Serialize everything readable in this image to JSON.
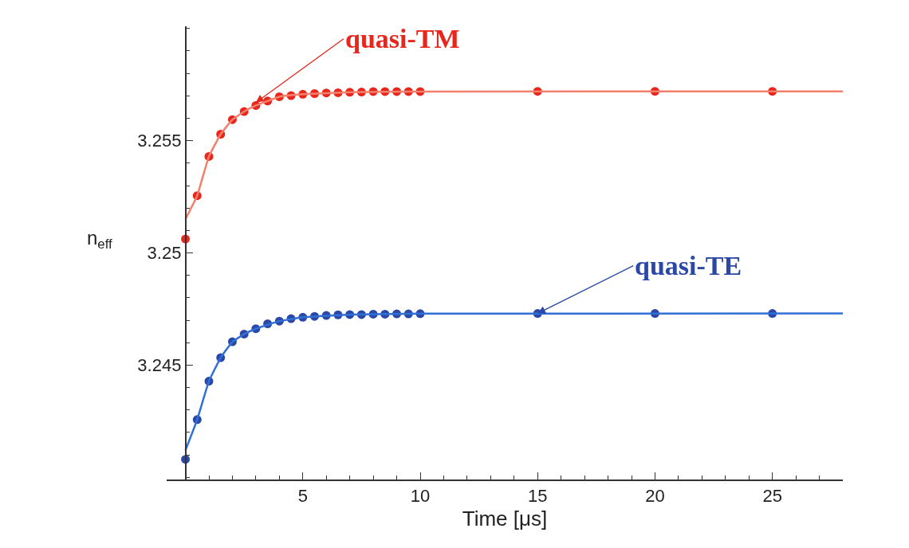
{
  "chart_data": {
    "type": "scatter",
    "xlabel": "Time [μs]",
    "ylabel": "n$_{eff}$",
    "xlim": [
      -0.8,
      28
    ],
    "ylim": [
      3.2399,
      3.2601
    ],
    "xticks": [
      5,
      10,
      15,
      20,
      25
    ],
    "yticks": [
      {
        "value": 3.245,
        "label": "3.245"
      },
      {
        "value": 3.25,
        "label": "3.25"
      },
      {
        "value": 3.255,
        "label": "3.255"
      }
    ],
    "marker": "circle",
    "series": [
      {
        "color": "#e8261c",
        "x": [
          0,
          0.5,
          1,
          1.5,
          2,
          2.5,
          3,
          3.5,
          4,
          4.5,
          5,
          5.5,
          6,
          6.5,
          7,
          7.5,
          8,
          8.5,
          9,
          9.5,
          10,
          15,
          20,
          25
        ],
        "values": [
          3.25062,
          3.25255,
          3.2543,
          3.25529,
          3.25594,
          3.2563,
          3.25657,
          3.25677,
          3.25696,
          3.25701,
          3.25707,
          3.2571,
          3.25713,
          3.25714,
          3.25716,
          3.25717,
          3.25719,
          3.25719,
          3.25719,
          3.25719,
          3.25719,
          3.2572,
          3.2572,
          3.2572
        ]
      },
      {
        "type": "line",
        "color": "#f2806c",
        "marker": "none",
        "x": [
          0,
          0.5,
          1,
          1.5,
          2,
          2.5,
          3,
          4,
          5,
          7,
          10,
          28
        ],
        "values": [
          3.2515,
          3.25255,
          3.2543,
          3.25529,
          3.25594,
          3.2563,
          3.25657,
          3.25696,
          3.25707,
          3.25716,
          3.25719,
          3.2572
        ]
      },
      {
        "color": "#2c48a6",
        "x": [
          0,
          0.5,
          1,
          1.5,
          2,
          2.5,
          3,
          3.5,
          4,
          4.5,
          5,
          5.5,
          6,
          6.5,
          7,
          7.5,
          8,
          8.5,
          9,
          9.5,
          10,
          15,
          20,
          25
        ],
        "values": [
          3.2408,
          3.24257,
          3.24428,
          3.24533,
          3.24604,
          3.24638,
          3.24662,
          3.24684,
          3.24696,
          3.24707,
          3.24713,
          3.24717,
          3.24721,
          3.24724,
          3.24725,
          3.24725,
          3.24727,
          3.24727,
          3.24728,
          3.24728,
          3.24729,
          3.2473,
          3.2473,
          3.2473
        ]
      },
      {
        "type": "line",
        "color": "#2f6fd6",
        "marker": "none",
        "x": [
          0,
          0.5,
          1,
          1.5,
          2,
          2.5,
          3,
          4,
          5,
          7,
          10,
          28
        ],
        "values": [
          3.2412,
          3.24257,
          3.24428,
          3.24533,
          3.24604,
          3.24638,
          3.24662,
          3.24696,
          3.24713,
          3.24725,
          3.24729,
          3.2473
        ]
      }
    ],
    "annotations": [
      {
        "text": "quasi-TM",
        "x": 3,
        "y": 3.2567
      },
      {
        "text": "quasi-TE",
        "x": 15,
        "y": 3.2473
      }
    ]
  }
}
